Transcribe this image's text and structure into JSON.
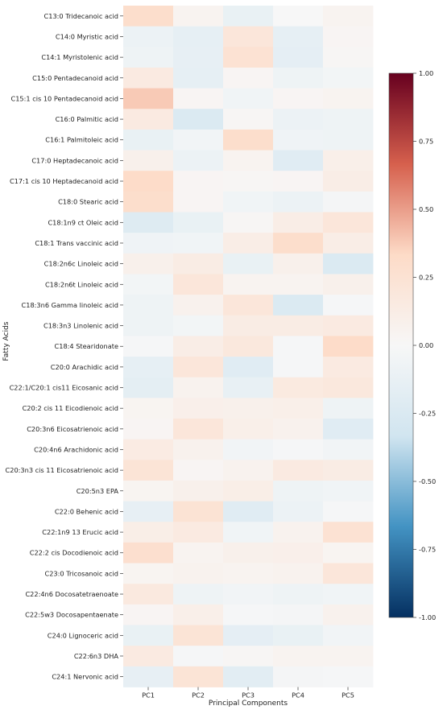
{
  "chart_data": {
    "type": "heatmap",
    "xlabel": "Principal Components",
    "ylabel": "Fatty Acids",
    "columns": [
      "PC1",
      "PC2",
      "PC3",
      "PC4",
      "PC5"
    ],
    "rows": [
      "C13:0 Tridecanoic acid",
      "C14:0 Myristic acid",
      "C14:1 Myristolenic acid",
      "C15:0 Pentadecanoid acid",
      "C15:1 cis 10 Pentadecanoid acid",
      "C16:0 Palmitic acid",
      "C16:1 Palmitoleic acid",
      "C17:0 Heptadecanoic acid",
      "C17:1 cis 10  Heptadecanoid acid",
      "C18:0 Stearic acid",
      "C18:1n9 ct Oleic acid",
      "C18:1 Trans vaccinic acid",
      "C18:2n6c Linoleic acid",
      "C18:2n6t Linoleic acid",
      "C18:3n6 Gamma linoleic acid",
      "C18:3n3 Linolenic acid",
      "C18:4 Stearidonate",
      "C20:0 Arachidic acid",
      "C22:1/C20:1 cis11  Eicosanic acid",
      "C20:2 cis 11 Eicodienoic acid",
      "C20:3n6 Eicosatrienoic acid",
      "C20:4n6 Arachidonic acid",
      "C20:3n3 cis 11 Eicosatrienoic acid",
      "C20:5n3 EPA",
      "C22:0 Behenic acid",
      "C22:1n9 13 Erucic acid",
      "C22:2 cis Docodienoic acid",
      "C23:0 Tricosanoic acid",
      "C22:4n6 Docosatetraenoate",
      "C22:5w3 Docosapentaenate",
      "C24:0 Lignoceric acid",
      "C22:6n3 DHA",
      "C24:1 Nervonic acid"
    ],
    "values": [
      [
        0.3,
        0.05,
        -0.12,
        0.0,
        0.05
      ],
      [
        -0.1,
        -0.15,
        0.2,
        -0.15,
        0.03
      ],
      [
        -0.08,
        -0.14,
        0.25,
        -0.16,
        0.02
      ],
      [
        0.15,
        -0.15,
        0.03,
        -0.08,
        -0.04
      ],
      [
        0.38,
        0.03,
        -0.06,
        0.03,
        0.05
      ],
      [
        0.15,
        -0.25,
        0.02,
        -0.1,
        -0.08
      ],
      [
        -0.12,
        -0.05,
        0.3,
        -0.07,
        -0.08
      ],
      [
        0.08,
        -0.1,
        0.05,
        -0.2,
        0.1
      ],
      [
        0.32,
        0.03,
        0.02,
        0.03,
        0.12
      ],
      [
        0.3,
        0.03,
        -0.06,
        -0.1,
        -0.03
      ],
      [
        -0.22,
        -0.12,
        0.02,
        0.12,
        0.2
      ],
      [
        -0.07,
        -0.06,
        0.12,
        0.3,
        0.12
      ],
      [
        0.08,
        0.13,
        -0.12,
        0.08,
        -0.25
      ],
      [
        -0.04,
        0.2,
        0.05,
        0.05,
        0.08
      ],
      [
        -0.08,
        0.07,
        0.2,
        -0.25,
        -0.02
      ],
      [
        -0.08,
        -0.04,
        0.13,
        0.13,
        0.15
      ],
      [
        -0.02,
        0.12,
        0.18,
        -0.02,
        0.32
      ],
      [
        -0.15,
        0.2,
        -0.2,
        -0.02,
        0.15
      ],
      [
        -0.17,
        0.06,
        -0.13,
        0.16,
        0.18
      ],
      [
        0.04,
        0.09,
        0.08,
        0.1,
        -0.08
      ],
      [
        0.03,
        0.2,
        0.1,
        0.07,
        -0.2
      ],
      [
        0.14,
        0.07,
        -0.05,
        -0.02,
        -0.05
      ],
      [
        0.23,
        0.03,
        0.06,
        0.15,
        0.13
      ],
      [
        0.04,
        0.08,
        0.11,
        -0.08,
        -0.06
      ],
      [
        -0.14,
        0.24,
        -0.2,
        -0.1,
        -0.02
      ],
      [
        0.11,
        0.15,
        -0.06,
        0.06,
        0.25
      ],
      [
        0.28,
        0.05,
        0.08,
        0.09,
        0.04
      ],
      [
        0.04,
        0.06,
        0.05,
        0.06,
        0.2
      ],
      [
        0.17,
        -0.08,
        -0.05,
        -0.08,
        -0.06
      ],
      [
        0.03,
        0.1,
        -0.02,
        -0.03,
        0.07
      ],
      [
        -0.12,
        0.23,
        -0.16,
        -0.12,
        -0.05
      ],
      [
        0.15,
        -0.02,
        0.02,
        0.05,
        0.05
      ],
      [
        -0.14,
        0.23,
        -0.18,
        -0.03,
        -0.02
      ]
    ],
    "colorbar": {
      "vmin": -1.0,
      "vmax": 1.0,
      "ticks": [
        "1.00",
        "0.75",
        "0.50",
        "0.25",
        "0.00",
        "-0.25",
        "-0.50",
        "-0.75",
        "-1.00"
      ],
      "colormap": "RdBu_r"
    },
    "colors": {
      "neg_strong": "#053061",
      "neg_mid": "#4393c3",
      "neg_light": "#d1e5f0",
      "neutral": "#f7f7f7",
      "pos_light": "#fddbc7",
      "pos_mid": "#d6604d",
      "pos_strong": "#67001f"
    }
  }
}
